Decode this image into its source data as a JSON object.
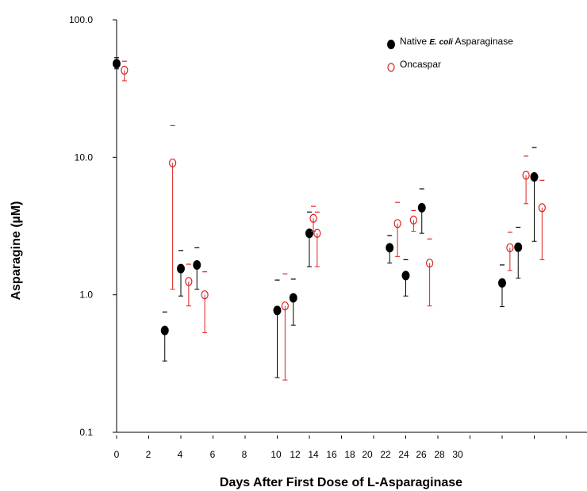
{
  "chart_data": {
    "type": "scatter",
    "title": "",
    "xlabel": "Days After First Dose of L-Asparaginase",
    "ylabel": "Asparagine (µM)",
    "y_scale": "log",
    "ylim": [
      0.1,
      100
    ],
    "y_ticks": [
      "0.1",
      "1.0",
      "10.0",
      "100.0"
    ],
    "x_tick_labels": [
      "0",
      "2",
      "4",
      "6",
      "8",
      "10",
      "12",
      "14",
      "16",
      "18",
      "20",
      "22",
      "24",
      "26",
      "28",
      "30"
    ],
    "legend": {
      "placement": "top-right",
      "entries": [
        {
          "prefix": "Native ",
          "emph": "E. coli",
          "suffix": " Asparaginase"
        },
        {
          "prefix": "Oncaspar",
          "emph": "",
          "suffix": ""
        }
      ]
    },
    "colors": {
      "native": "#000000",
      "oncaspar": "#dd2222"
    },
    "series": [
      {
        "name": "Native E. coli Asparaginase",
        "marker": "filled-circle",
        "points": [
          {
            "slot": 0,
            "y": 48,
            "err_low": 44,
            "err_high": 53
          },
          {
            "slot": 1.5,
            "y": 0.55,
            "err_low": 0.33,
            "err_high": 0.75
          },
          {
            "slot": 2.0,
            "y": 1.55,
            "err_low": 0.98,
            "err_high": 2.1
          },
          {
            "slot": 2.5,
            "y": 1.65,
            "err_low": 1.1,
            "err_high": 2.2
          },
          {
            "slot": 5.0,
            "y": 0.77,
            "err_low": 0.25,
            "err_high": 1.28
          },
          {
            "slot": 5.5,
            "y": 0.95,
            "err_low": 0.6,
            "err_high": 1.3
          },
          {
            "slot": 6.0,
            "y": 2.8,
            "err_low": 1.6,
            "err_high": 4.0
          },
          {
            "slot": 8.5,
            "y": 2.2,
            "err_low": 1.7,
            "err_high": 2.7
          },
          {
            "slot": 9.0,
            "y": 1.38,
            "err_low": 0.98,
            "err_high": 1.8
          },
          {
            "slot": 9.5,
            "y": 4.3,
            "err_low": 2.8,
            "err_high": 5.9
          },
          {
            "slot": 12.0,
            "y": 1.22,
            "err_low": 0.82,
            "err_high": 1.65
          },
          {
            "slot": 12.5,
            "y": 2.22,
            "err_low": 1.32,
            "err_high": 3.1
          },
          {
            "slot": 13.0,
            "y": 7.2,
            "err_low": 2.45,
            "err_high": 11.8
          }
        ]
      },
      {
        "name": "Oncaspar",
        "marker": "open-circle",
        "points": [
          {
            "slot": 0.12,
            "y": 43,
            "err_low": 36,
            "err_high": 50
          },
          {
            "slot": 1.62,
            "y": 9.1,
            "err_low": 1.1,
            "err_high": 17
          },
          {
            "slot": 2.12,
            "y": 1.25,
            "err_low": 0.83,
            "err_high": 1.67
          },
          {
            "slot": 2.62,
            "y": 1.0,
            "err_low": 0.53,
            "err_high": 1.47
          },
          {
            "slot": 5.12,
            "y": 0.83,
            "err_low": 0.24,
            "err_high": 1.42
          },
          {
            "slot": 6.0,
            "y": 3.6,
            "err_low": 2.9,
            "err_high": 4.4
          },
          {
            "slot": 6.12,
            "y": 2.8,
            "err_low": 1.6,
            "err_high": 4.0
          },
          {
            "slot": 8.62,
            "y": 3.3,
            "err_low": 1.9,
            "err_high": 4.7
          },
          {
            "slot": 9.12,
            "y": 3.5,
            "err_low": 2.9,
            "err_high": 4.1
          },
          {
            "slot": 9.62,
            "y": 1.7,
            "err_low": 0.83,
            "err_high": 2.55
          },
          {
            "slot": 12.12,
            "y": 2.2,
            "err_low": 1.5,
            "err_high": 2.85
          },
          {
            "slot": 12.62,
            "y": 7.4,
            "err_low": 4.6,
            "err_high": 10.2
          },
          {
            "slot": 13.12,
            "y": 4.3,
            "err_low": 1.8,
            "err_high": 6.8
          }
        ]
      }
    ]
  }
}
